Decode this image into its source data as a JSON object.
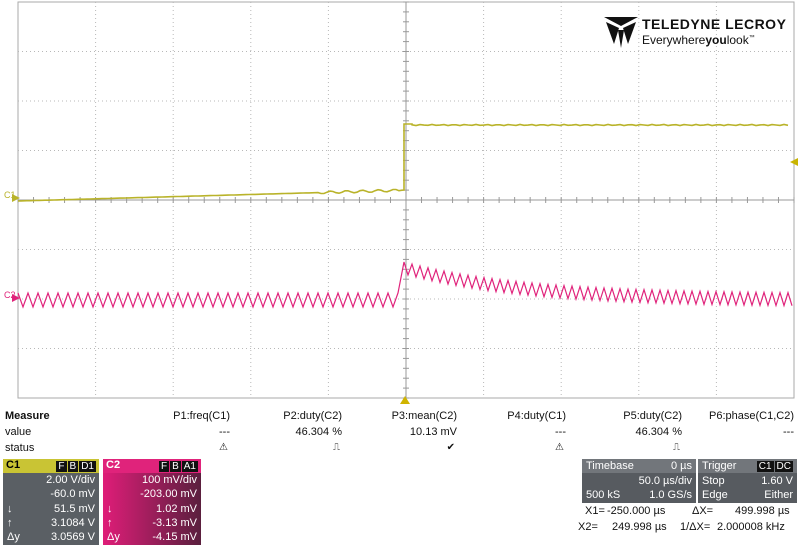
{
  "brand": {
    "name": "TELEDYNE LECROY",
    "tagline_pre": "Everywhere",
    "tagline_bold": "you",
    "tagline_post": "look",
    "tm": "™"
  },
  "markers": {
    "c1": "C1",
    "c2": "C2"
  },
  "measure": {
    "title": "Measure",
    "rows": {
      "value": "value",
      "status": "status"
    },
    "params": [
      {
        "label": "P1:freq(C1)",
        "value": "---",
        "status": "⚠"
      },
      {
        "label": "P2:duty(C2)",
        "value": "46.304 %",
        "status": "⎍"
      },
      {
        "label": "P3:mean(C2)",
        "value": "10.13 mV",
        "status": "✔"
      },
      {
        "label": "P4:duty(C1)",
        "value": "---",
        "status": "⚠"
      },
      {
        "label": "P5:duty(C2)",
        "value": "46.304 %",
        "status": "⎍"
      },
      {
        "label": "P6:phase(C1,C2)",
        "value": "---",
        "status": ""
      }
    ]
  },
  "channel1": {
    "name": "C1",
    "tags": [
      "F",
      "B",
      "D1"
    ],
    "vdiv": "2.00 V/div",
    "offset": "-60.0 mV",
    "down_sym": "↓",
    "down": "51.5 mV",
    "up_sym": "↑",
    "up": "3.1084 V",
    "dy_sym": "Δy",
    "dy": "3.0569 V",
    "color": "#c9c434"
  },
  "channel2": {
    "name": "C2",
    "tags": [
      "F",
      "B",
      "A1"
    ],
    "vdiv": "100 mV/div",
    "offset": "-203.00 mV",
    "down_sym": "↓",
    "down": "1.02 mV",
    "up_sym": "↑",
    "up": "-3.13 mV",
    "dy_sym": "Δy",
    "dy": "-4.15 mV",
    "color": "#e0237b"
  },
  "timebase": {
    "label": "Timebase",
    "delay": "0 µs",
    "tdiv": "50.0 µs/div",
    "samples": "500 kS",
    "rate": "1.0 GS/s"
  },
  "trigger": {
    "label": "Trigger",
    "tags": [
      "C1",
      "DC"
    ],
    "mode": "Stop",
    "level": "1.60 V",
    "type": "Edge",
    "slope": "Either"
  },
  "cursors": {
    "x1_label": "X1=",
    "x1": "-250.000 µs",
    "dx_label": "ΔX=",
    "dx": "499.998 µs",
    "x2_label": "X2=",
    "x2": "249.998 µs",
    "inv_label": "1/ΔX=",
    "inv": "2.000008 kHz"
  }
}
